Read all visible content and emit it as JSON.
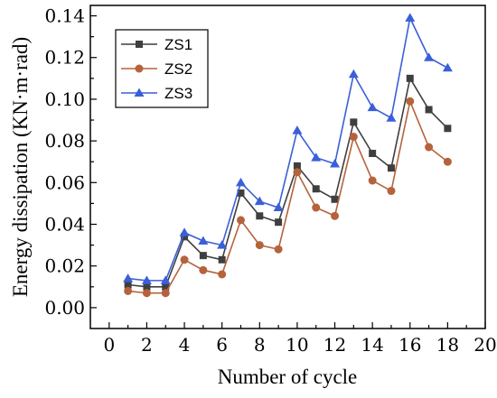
{
  "chart_data": {
    "type": "line",
    "xlabel": "Number of cycle",
    "ylabel": "Energy dissipation (KN·m·rad)",
    "xlim": [
      -1,
      20
    ],
    "ylim": [
      -0.01,
      0.145
    ],
    "xticks": [
      "0",
      "2",
      "4",
      "6",
      "8",
      "10",
      "12",
      "14",
      "16",
      "18",
      "20"
    ],
    "yticks": [
      "0.00",
      "0.02",
      "0.04",
      "0.06",
      "0.08",
      "0.10",
      "0.12",
      "0.14"
    ],
    "legend_position": "top-left",
    "x": [
      1,
      2,
      3,
      4,
      5,
      6,
      7,
      8,
      9,
      10,
      11,
      12,
      13,
      14,
      15,
      16,
      17,
      18
    ],
    "series": [
      {
        "name": "ZS1",
        "color": "#3f3f3f",
        "marker": "square",
        "values": [
          0.011,
          0.01,
          0.01,
          0.034,
          0.025,
          0.023,
          0.055,
          0.044,
          0.041,
          0.068,
          0.057,
          0.052,
          0.089,
          0.074,
          0.067,
          0.11,
          0.095,
          0.086
        ]
      },
      {
        "name": "ZS2",
        "color": "#b5633b",
        "marker": "circle",
        "values": [
          0.008,
          0.007,
          0.007,
          0.023,
          0.018,
          0.016,
          0.042,
          0.03,
          0.028,
          0.065,
          0.048,
          0.044,
          0.082,
          0.061,
          0.056,
          0.099,
          0.077,
          0.07
        ]
      },
      {
        "name": "ZS3",
        "color": "#3a5fd9",
        "marker": "triangle",
        "values": [
          0.014,
          0.013,
          0.013,
          0.036,
          0.032,
          0.03,
          0.06,
          0.051,
          0.048,
          0.085,
          0.072,
          0.069,
          0.112,
          0.096,
          0.091,
          0.139,
          0.12,
          0.115
        ]
      }
    ]
  }
}
